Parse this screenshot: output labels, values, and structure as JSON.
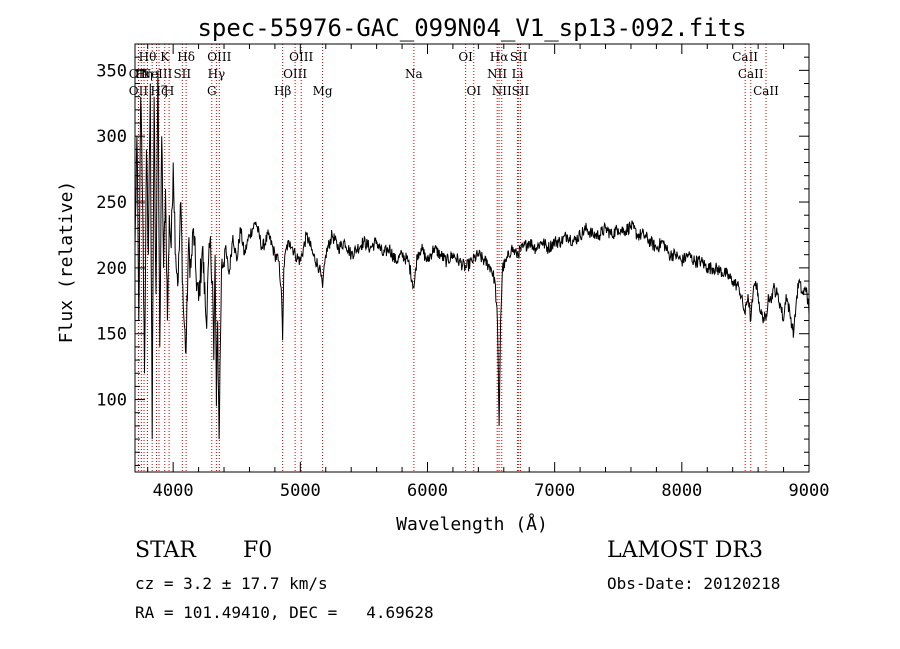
{
  "chart_data": {
    "type": "line",
    "title": "spec-55976-GAC_099N04_V1_sp13-092.fits",
    "xlabel": "Wavelength (Å)",
    "ylabel": "Flux (relative)",
    "xlim": [
      3700,
      9000
    ],
    "ylim": [
      45,
      370
    ],
    "xticks": [
      4000,
      5000,
      6000,
      7000,
      8000,
      9000
    ],
    "yticks": [
      100,
      150,
      200,
      250,
      300,
      350
    ],
    "line_color": "#000000",
    "marker_color": "#cc0000",
    "series": [
      {
        "name": "flux",
        "x": [
          3700,
          3715,
          3730,
          3745,
          3760,
          3775,
          3790,
          3805,
          3820,
          3835,
          3850,
          3865,
          3880,
          3895,
          3910,
          3925,
          3940,
          3955,
          3970,
          3985,
          4000,
          4020,
          4040,
          4060,
          4080,
          4101,
          4120,
          4140,
          4160,
          4180,
          4200,
          4230,
          4260,
          4290,
          4310,
          4320,
          4330,
          4340,
          4350,
          4361,
          4380,
          4410,
          4440,
          4470,
          4500,
          4530,
          4560,
          4600,
          4650,
          4700,
          4750,
          4800,
          4830,
          4850,
          4861,
          4870,
          4890,
          4920,
          4960,
          5000,
          5050,
          5100,
          5150,
          5175,
          5200,
          5250,
          5300,
          5350,
          5400,
          5450,
          5500,
          5550,
          5600,
          5650,
          5700,
          5750,
          5800,
          5850,
          5893,
          5920,
          5950,
          6000,
          6050,
          6100,
          6150,
          6200,
          6250,
          6300,
          6350,
          6400,
          6450,
          6500,
          6530,
          6550,
          6563,
          6575,
          6590,
          6620,
          6660,
          6700,
          6750,
          6800,
          6850,
          6900,
          6950,
          7000,
          7050,
          7100,
          7150,
          7200,
          7250,
          7300,
          7350,
          7400,
          7450,
          7500,
          7550,
          7600,
          7650,
          7700,
          7750,
          7800,
          7850,
          7900,
          7950,
          8000,
          8050,
          8100,
          8150,
          8200,
          8250,
          8300,
          8350,
          8400,
          8450,
          8498,
          8520,
          8542,
          8560,
          8580,
          8600,
          8620,
          8662,
          8680,
          8700,
          8720,
          8750,
          8780,
          8800,
          8820,
          8850,
          8880,
          8900,
          8920,
          8950,
          8980,
          9000
        ],
        "y": [
          215,
          300,
          160,
          330,
          250,
          120,
          290,
          210,
          340,
          70,
          330,
          180,
          350,
          140,
          300,
          200,
          260,
          160,
          240,
          215,
          280,
          210,
          190,
          250,
          170,
          135,
          215,
          200,
          230,
          195,
          175,
          215,
          160,
          220,
          190,
          130,
          210,
          95,
          160,
          70,
          200,
          215,
          195,
          225,
          205,
          230,
          210,
          225,
          235,
          215,
          225,
          210,
          205,
          185,
          145,
          200,
          215,
          220,
          210,
          205,
          225,
          210,
          200,
          185,
          210,
          225,
          215,
          220,
          210,
          215,
          220,
          215,
          220,
          210,
          215,
          205,
          210,
          205,
          185,
          210,
          215,
          205,
          215,
          210,
          205,
          210,
          205,
          200,
          205,
          210,
          205,
          200,
          190,
          160,
          80,
          160,
          200,
          205,
          215,
          210,
          215,
          220,
          215,
          220,
          215,
          220,
          220,
          225,
          220,
          225,
          230,
          225,
          225,
          230,
          225,
          230,
          228,
          232,
          225,
          225,
          220,
          215,
          220,
          210,
          210,
          205,
          210,
          205,
          205,
          200,
          200,
          198,
          195,
          190,
          185,
          165,
          180,
          160,
          180,
          190,
          180,
          165,
          160,
          180,
          175,
          185,
          180,
          170,
          160,
          180,
          165,
          150,
          175,
          190,
          180,
          185,
          165
        ]
      }
    ],
    "line_markers": [
      {
        "x": 3727,
        "top": "",
        "mid": "OII",
        "bot": "OII"
      },
      {
        "x": 3750,
        "top": "",
        "mid": "",
        "bot": ""
      },
      {
        "x": 3771,
        "top": "",
        "mid": "Hη",
        "bot": ""
      },
      {
        "x": 3798,
        "top": "Hθ",
        "mid": "",
        "bot": ""
      },
      {
        "x": 3835,
        "top": "",
        "mid": "",
        "bot": ""
      },
      {
        "x": 3869,
        "top": "",
        "mid": "NeIII",
        "bot": ""
      },
      {
        "x": 3889,
        "top": "",
        "mid": "",
        "bot": "Hζ"
      },
      {
        "x": 3934,
        "top": "K",
        "mid": "",
        "bot": ""
      },
      {
        "x": 3968,
        "top": "",
        "mid": "",
        "bot": "H"
      },
      {
        "x": 4072,
        "top": "",
        "mid": "SII",
        "bot": ""
      },
      {
        "x": 4102,
        "top": "Hδ",
        "mid": "",
        "bot": ""
      },
      {
        "x": 4304,
        "top": "",
        "mid": "",
        "bot": "G"
      },
      {
        "x": 4340,
        "top": "",
        "mid": "Hγ",
        "bot": ""
      },
      {
        "x": 4363,
        "top": "OIII",
        "mid": "",
        "bot": ""
      },
      {
        "x": 4861,
        "top": "",
        "mid": "",
        "bot": "Hβ"
      },
      {
        "x": 4959,
        "top": "",
        "mid": "OIII",
        "bot": ""
      },
      {
        "x": 5007,
        "top": "OIII",
        "mid": "",
        "bot": ""
      },
      {
        "x": 5175,
        "top": "",
        "mid": "",
        "bot": "Mg"
      },
      {
        "x": 5893,
        "top": "",
        "mid": "Na",
        "bot": ""
      },
      {
        "x": 6300,
        "top": "OI",
        "mid": "",
        "bot": ""
      },
      {
        "x": 6364,
        "top": "",
        "mid": "",
        "bot": "OI"
      },
      {
        "x": 6548,
        "top": "",
        "mid": "NII",
        "bot": ""
      },
      {
        "x": 6563,
        "top": "Hα",
        "mid": "",
        "bot": ""
      },
      {
        "x": 6584,
        "top": "",
        "mid": "",
        "bot": "NII"
      },
      {
        "x": 6708,
        "top": "",
        "mid": "Li",
        "bot": ""
      },
      {
        "x": 6717,
        "top": "SII",
        "mid": "",
        "bot": ""
      },
      {
        "x": 6731,
        "top": "",
        "mid": "",
        "bot": "SII"
      },
      {
        "x": 8498,
        "top": "CaII",
        "mid": "",
        "bot": ""
      },
      {
        "x": 8542,
        "top": "",
        "mid": "CaII",
        "bot": ""
      },
      {
        "x": 8662,
        "top": "",
        "mid": "",
        "bot": "CaII"
      }
    ]
  },
  "info": {
    "class_label": "STAR",
    "subclass": "F0",
    "survey": "LAMOST DR3",
    "cz_text": "cz = 3.2 ± 17.7 km/s",
    "obs_date": "Obs-Date: 20120218",
    "radec": "RA = 101.49410, DEC =   4.69628"
  }
}
